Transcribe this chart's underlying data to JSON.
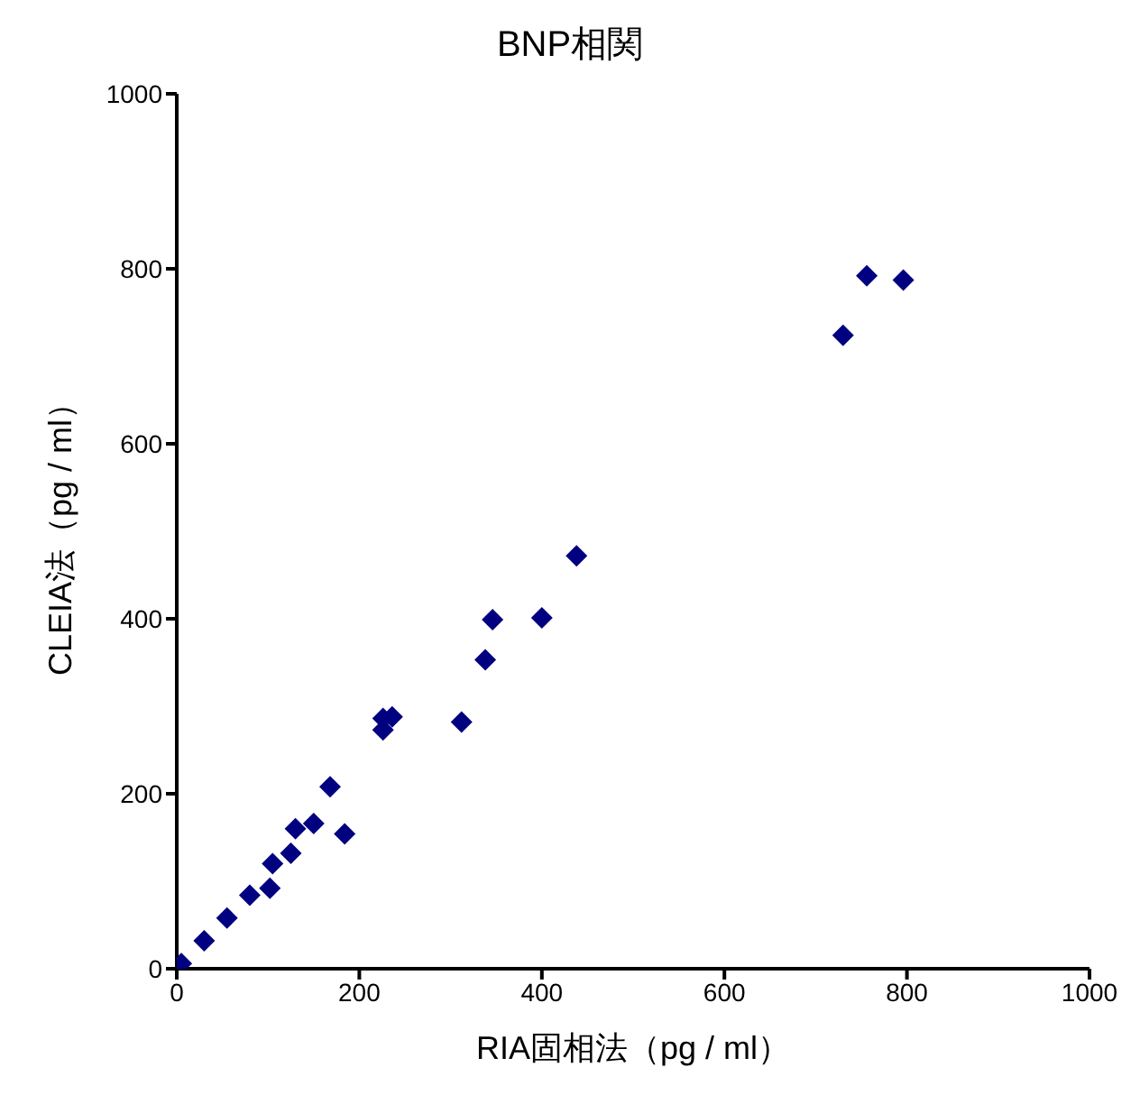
{
  "chart_data": {
    "type": "scatter",
    "title": "BNP相関",
    "xlabel": "RIA固相法（pg / ml）",
    "ylabel": "CLEIA法（pg / ml）",
    "xlim": [
      0,
      1000
    ],
    "ylim": [
      0,
      1000
    ],
    "xticks": [
      0,
      200,
      400,
      600,
      800,
      1000
    ],
    "yticks": [
      0,
      200,
      400,
      600,
      800,
      1000
    ],
    "grid": false,
    "marker": "diamond",
    "legend": false,
    "series": [
      {
        "color": "#000080",
        "x": [
          5,
          30,
          55,
          80,
          102,
          105,
          125,
          130,
          150,
          168,
          184,
          226,
          226,
          236,
          312,
          338,
          346,
          400,
          438,
          730,
          756,
          796
        ],
        "values": [
          6,
          32,
          58,
          84,
          92,
          120,
          132,
          160,
          166,
          208,
          154,
          273,
          286,
          288,
          282,
          353,
          399,
          401,
          472,
          724,
          792,
          787
        ]
      }
    ]
  }
}
